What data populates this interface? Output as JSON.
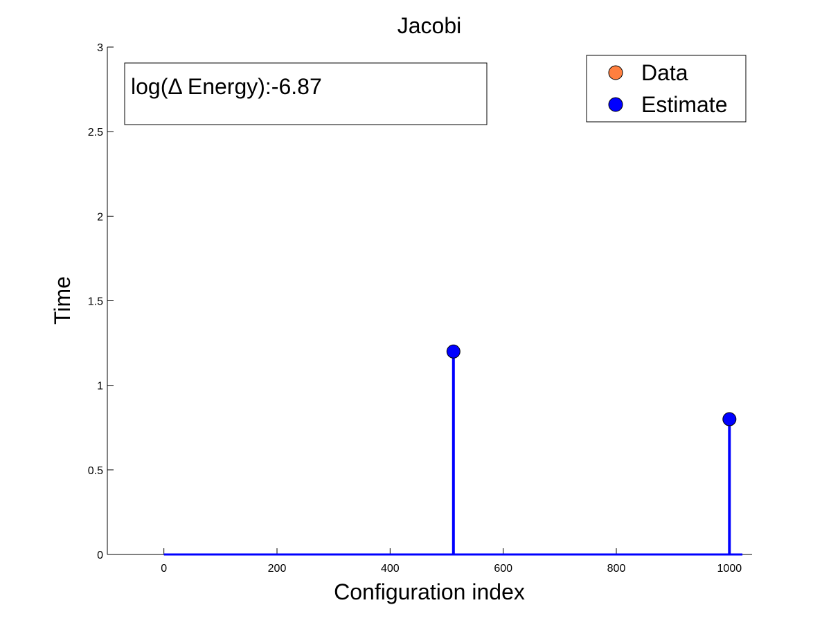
{
  "chart_data": {
    "type": "stem",
    "title": "Jacobi",
    "xlabel": "Configuration index",
    "ylabel": "Time",
    "xlim": [
      -100,
      1040
    ],
    "ylim": [
      0,
      3
    ],
    "xticks": [
      0,
      200,
      400,
      600,
      800,
      1000
    ],
    "yticks": [
      0,
      0.5,
      1,
      1.5,
      2,
      2.5,
      3
    ],
    "xtick_labels": [
      "0",
      "200",
      "400",
      "600",
      "800",
      "1000"
    ],
    "ytick_labels": [
      "0",
      "0.5",
      "1",
      "1.5",
      "2",
      "2.5",
      "3"
    ],
    "baseline_range": [
      0,
      1023
    ],
    "grid": false,
    "legend_position": "top-right",
    "series": [
      {
        "name": "Data",
        "color": "#FF7F3F",
        "x": [],
        "y": []
      },
      {
        "name": "Estimate",
        "color": "#0000FF",
        "x": [
          512,
          1000
        ],
        "y": [
          1.2,
          0.8
        ]
      }
    ],
    "annotation": "log(Δ Energy):-6.87"
  }
}
